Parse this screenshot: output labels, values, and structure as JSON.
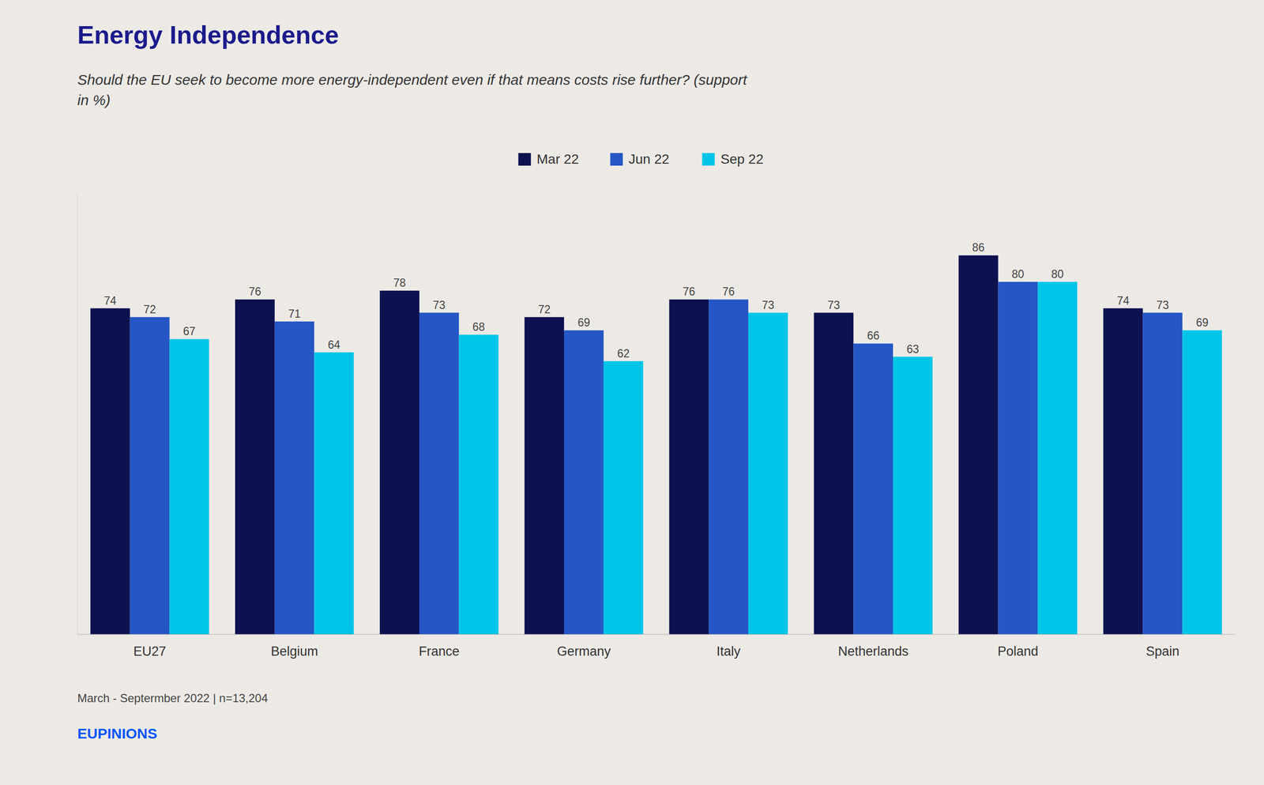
{
  "chart_data": {
    "type": "bar",
    "title": "Energy Independence",
    "subtitle": "Should the EU seek to become more energy-independent even if that means costs rise further? (support\nin %)",
    "categories": [
      "EU27",
      "Belgium",
      "France",
      "Germany",
      "Italy",
      "Netherlands",
      "Poland",
      "Spain"
    ],
    "series": [
      {
        "name": "Mar 22",
        "color": "#0d1150",
        "values": [
          74,
          76,
          78,
          72,
          76,
          73,
          86,
          74
        ]
      },
      {
        "name": "Jun 22",
        "color": "#2457c5",
        "values": [
          72,
          71,
          73,
          69,
          76,
          66,
          80,
          73
        ]
      },
      {
        "name": "Sep 22",
        "color": "#00c5e8",
        "values": [
          67,
          64,
          68,
          62,
          73,
          63,
          80,
          69
        ]
      }
    ],
    "ylim": [
      0,
      100
    ],
    "grid": false,
    "legend": "top",
    "data_labels": true,
    "tick_labels": "x",
    "annotations": [
      "March - Septermber 2022 | n=13,204",
      "EUPINIONS"
    ]
  }
}
